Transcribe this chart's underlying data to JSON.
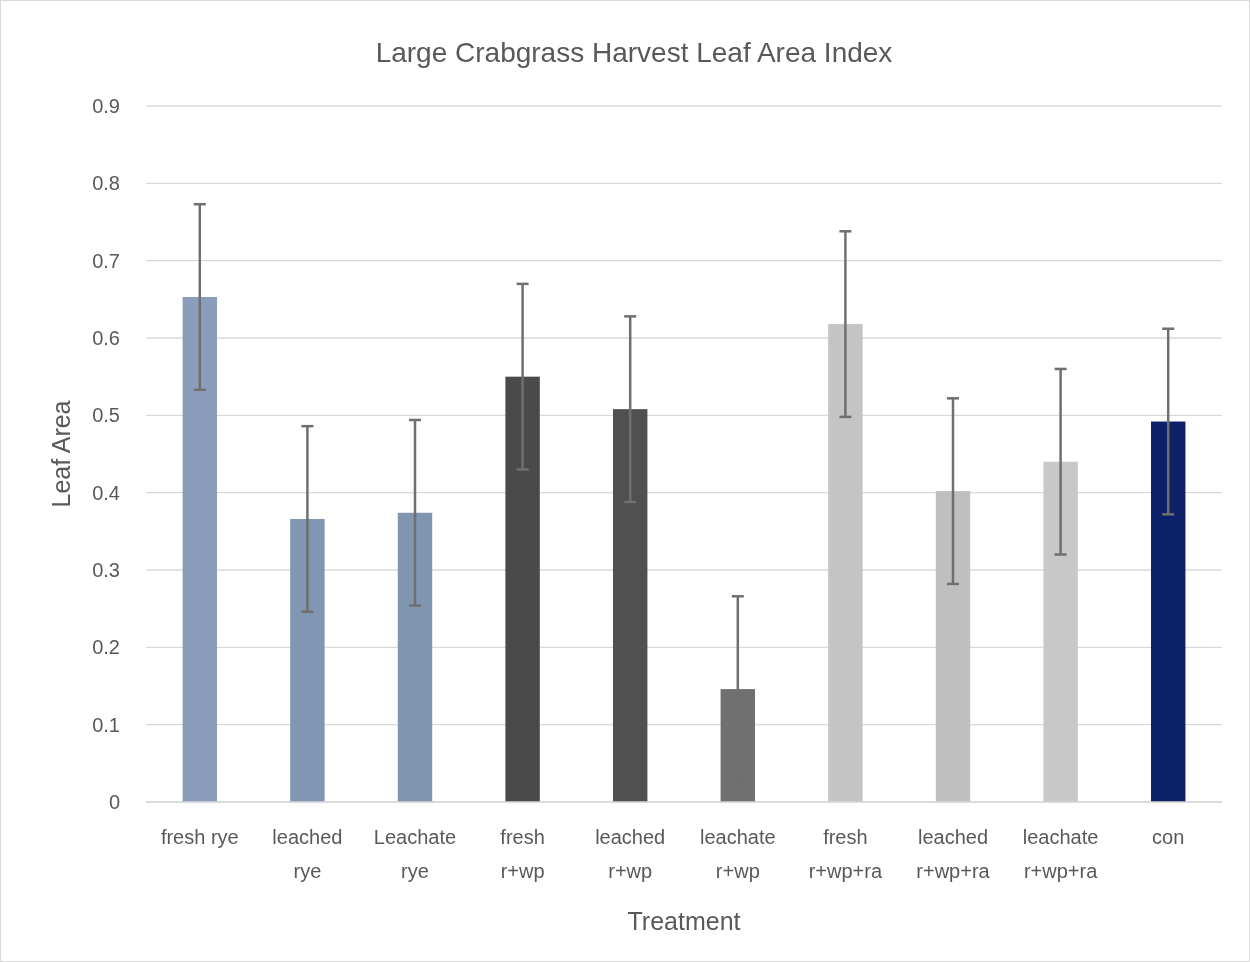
{
  "chart_data": {
    "type": "bar",
    "title": "Large Crabgrass Harvest Leaf Area Index",
    "xlabel": "Treatment",
    "ylabel": "Leaf Area",
    "categories": [
      "fresh rye",
      "leached rye",
      "Leachate rye",
      "fresh r+wp",
      "leached r+wp",
      "leachate r+wp",
      "fresh r+wp+ra",
      "leached r+wp+ra",
      "leachate r+wp+ra",
      "con"
    ],
    "values": [
      0.653,
      0.366,
      0.374,
      0.55,
      0.508,
      0.146,
      0.618,
      0.402,
      0.44,
      0.492
    ],
    "errors": [
      0.12,
      0.12,
      0.12,
      0.12,
      0.12,
      0.12,
      0.12,
      0.12,
      0.12,
      0.12
    ],
    "colors": [
      "#8a9dba",
      "#8096b2",
      "#8096b0",
      "#4a4a4a",
      "#505050",
      "#707070",
      "#c4c4c4",
      "#bfbfbf",
      "#c8c8c8",
      "#0d2169"
    ],
    "ylim": [
      0,
      0.9
    ],
    "yticks": [
      0,
      0.1,
      0.2,
      0.3,
      0.4,
      0.5,
      0.6,
      0.7,
      0.8,
      0.9
    ],
    "grid": "y"
  }
}
